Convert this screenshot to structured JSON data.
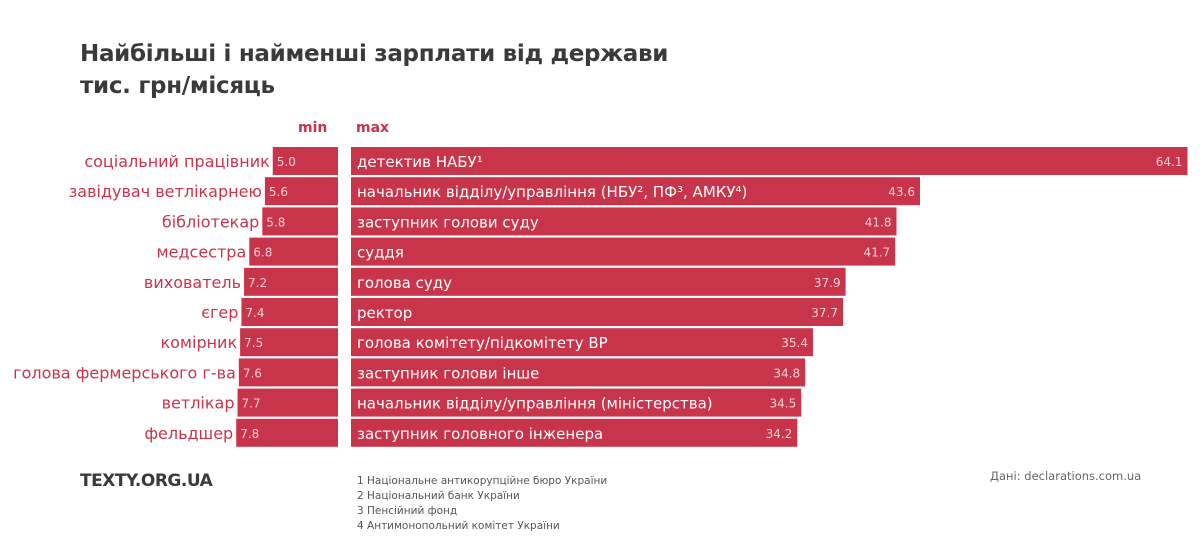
{
  "header": {
    "title_line1": "Найбільші і найменші зарплати від держави",
    "title_line2": "тис. грн/місяць",
    "min_label": "min",
    "max_label": "max"
  },
  "chart_data": {
    "type": "bar",
    "title": "Найбільші і найменші зарплати від держави",
    "subtitle": "тис. грн/місяць",
    "unit": "тис. грн/місяць",
    "colors": {
      "bar": "#c8344a",
      "label_text": "#c8344a",
      "value_text": "#f3d0d6",
      "bar_text": "#ffffff"
    },
    "series": [
      {
        "name": "min",
        "orientation": "leftward",
        "categories": [
          "соціальний працівник",
          "завідувач ветлікарнею",
          "бібліотекар",
          "медсестра",
          "вихователь",
          "єгер",
          "комірник",
          "голова фермерського г-ва",
          "ветлікар",
          "фельдшер"
        ],
        "values": [
          5.0,
          5.6,
          5.8,
          6.8,
          7.2,
          7.4,
          7.5,
          7.6,
          7.7,
          7.8
        ],
        "value_labels": [
          "5.0",
          "5.6",
          "5.8",
          "6.8",
          "7.2",
          "7.4",
          "7.5",
          "7.6",
          "7.7",
          "7.8"
        ]
      },
      {
        "name": "max",
        "orientation": "rightward",
        "categories": [
          "детектив НАБУ¹",
          "начальник відділу/управління (НБУ², ПФ³, АМКУ⁴)",
          "заступник голови суду",
          "суддя",
          "голова суду",
          "ректор",
          "голова комітету/підкомітету ВР",
          "заступник голови інше",
          "начальник відділу/управління (міністерства)",
          "заступник головного інженера"
        ],
        "values": [
          64.1,
          43.6,
          41.8,
          41.7,
          37.9,
          37.7,
          35.4,
          34.8,
          34.5,
          34.2
        ],
        "value_labels": [
          "64.1",
          "43.6",
          "41.8",
          "41.7",
          "37.9",
          "37.7",
          "35.4",
          "34.8",
          "34.5",
          "34.2"
        ]
      }
    ],
    "xlim": [
      0,
      64.1
    ],
    "grid": false,
    "legend": "none"
  },
  "footer": {
    "logo": "TEXTY.ORG.UA",
    "footnotes": [
      "1 Національне антикорупційне бюро України",
      "2 Національний банк України",
      "3 Пенсійний фонд",
      "4 Антимонопольний комітет України"
    ],
    "source": "Дані: declarations.com.ua"
  }
}
